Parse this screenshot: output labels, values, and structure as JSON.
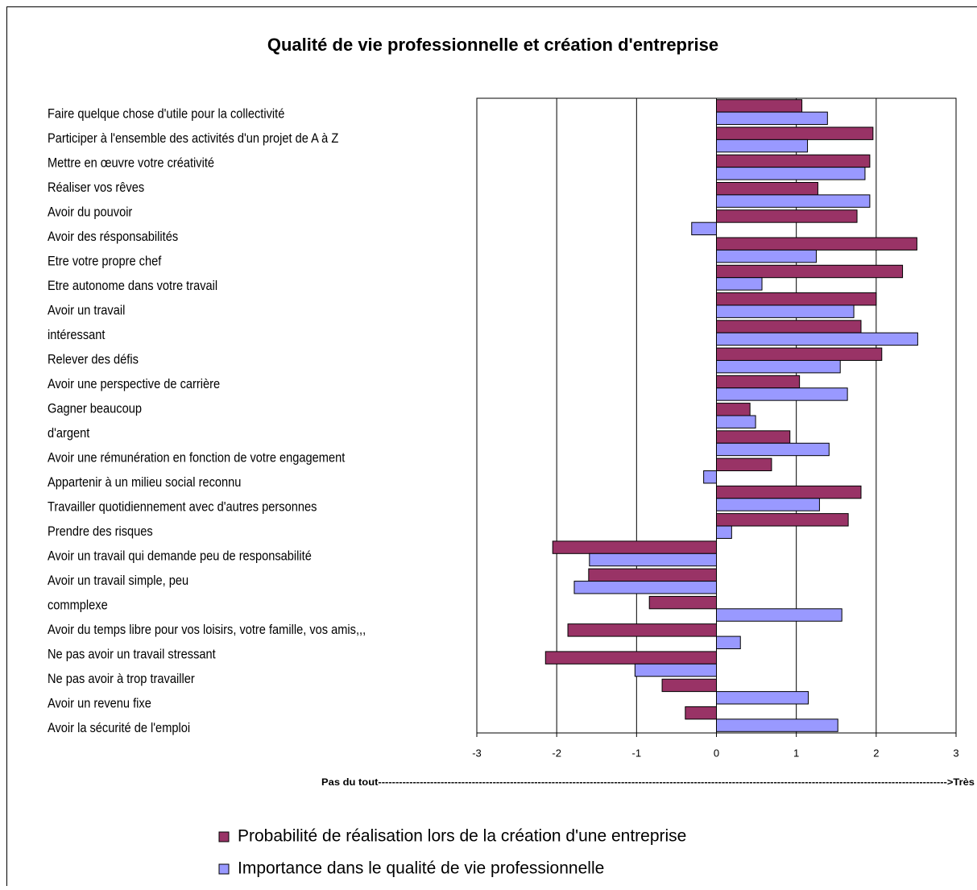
{
  "chart_data": {
    "type": "barh",
    "title": "Qualité de vie professionnelle et création d'entreprise",
    "annotation": "Pas du tout-------------------------------------------------------------------------------------------------------------------------------------------------------------------->Très",
    "categories": [
      "Faire quelque chose d'utile pour la collectivité",
      "Participer à l'ensemble des activités d'un projet de A à Z",
      "Mettre en œuvre votre créativité",
      "Réaliser vos rêves",
      "Avoir du pouvoir",
      "Avoir des résponsabilités",
      "Etre votre propre chef",
      "Etre autonome dans votre travail",
      "Avoir un travail\nintéressant",
      "Relever des défis",
      "Avoir une perspective de carrière",
      "Gagner beaucoup\nd'argent",
      "Avoir une rémunération en fonction de votre engagement",
      "Appartenir à un milieu social reconnu",
      "Travailler quotidiennement avec d'autres personnes",
      "Prendre des risques",
      "Avoir un travail qui demande peu de responsabilité",
      "Avoir un travail simple, peu\ncommplexe",
      "Avoir du temps libre pour vos loisirs, votre famille, vos amis,,,",
      "Ne pas avoir un travail stressant",
      "Ne pas avoir à trop travailler",
      "Avoir un revenu fixe",
      "Avoir la sécurité de l'emploi"
    ],
    "series": [
      {
        "name": "Probabilité de réalisation lors de la création d'une entreprise",
        "color": "#993366",
        "values": [
          1.07,
          1.96,
          1.92,
          1.27,
          1.76,
          2.51,
          2.33,
          2.0,
          1.81,
          2.07,
          1.04,
          0.42,
          0.92,
          0.69,
          1.81,
          1.65,
          -2.05,
          -1.6,
          -0.84,
          -1.86,
          -2.14,
          -0.68,
          -0.39
        ]
      },
      {
        "name": "Importance dans le qualité de vie professionnelle",
        "color": "#9999ff",
        "values": [
          1.39,
          1.14,
          1.86,
          1.92,
          -0.31,
          1.25,
          0.57,
          1.72,
          2.52,
          1.55,
          1.64,
          0.49,
          1.41,
          -0.16,
          1.29,
          0.19,
          -1.59,
          -1.78,
          1.57,
          0.3,
          -1.02,
          1.15,
          1.52
        ]
      }
    ],
    "xlim": [
      -3,
      3
    ],
    "xticks": [
      -3,
      -2,
      -1,
      0,
      1,
      2,
      3
    ],
    "grid": true,
    "legend": "bottom"
  }
}
